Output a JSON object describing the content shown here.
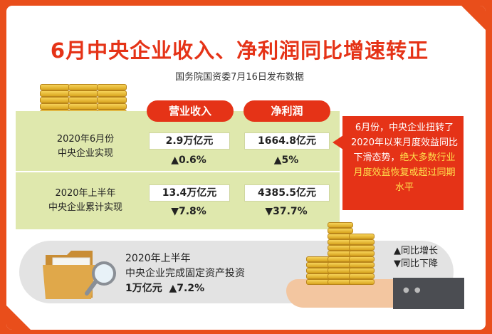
{
  "title": "6月中央企业收入、净利润同比增速转正",
  "subtitle": "国务院国资委7月16日发布数据",
  "headers": {
    "revenue": "营业收入",
    "profit": "净利润"
  },
  "rows": [
    {
      "label_line1": "2020年6月份",
      "label_line2": "中央企业实现",
      "revenue_value": "2.9万亿元",
      "revenue_change": "▲0.6%",
      "profit_value": "1664.8亿元",
      "profit_change": "▲5%"
    },
    {
      "label_line1": "2020年上半年",
      "label_line2": "中央企业累计实现",
      "revenue_value": "13.4万亿元",
      "revenue_change": "▼7.8%",
      "profit_value": "4385.5亿元",
      "profit_change": "▼37.7%"
    }
  ],
  "note": {
    "part1": "6月份，中央企业扭转了2020年以来月度效益同比下滑态势，",
    "part2": "绝大多数行业月度效益恢复或超过同期水平"
  },
  "investment": {
    "line1": "2020年上半年",
    "line2": "中央企业完成固定资产投资",
    "amount": "1万亿元",
    "change": "▲7.2%"
  },
  "legend": {
    "up": "▲同比增长",
    "down": "▼同比下降"
  },
  "icons": [
    "gold-bars-icon",
    "folder-magnifier-icon",
    "hand-coins-icon"
  ],
  "colors": {
    "accent": "#e53317",
    "highlight": "#ffe14d",
    "panel_green": "#dfe8ad",
    "panel_gray": "#e3e3e3"
  }
}
